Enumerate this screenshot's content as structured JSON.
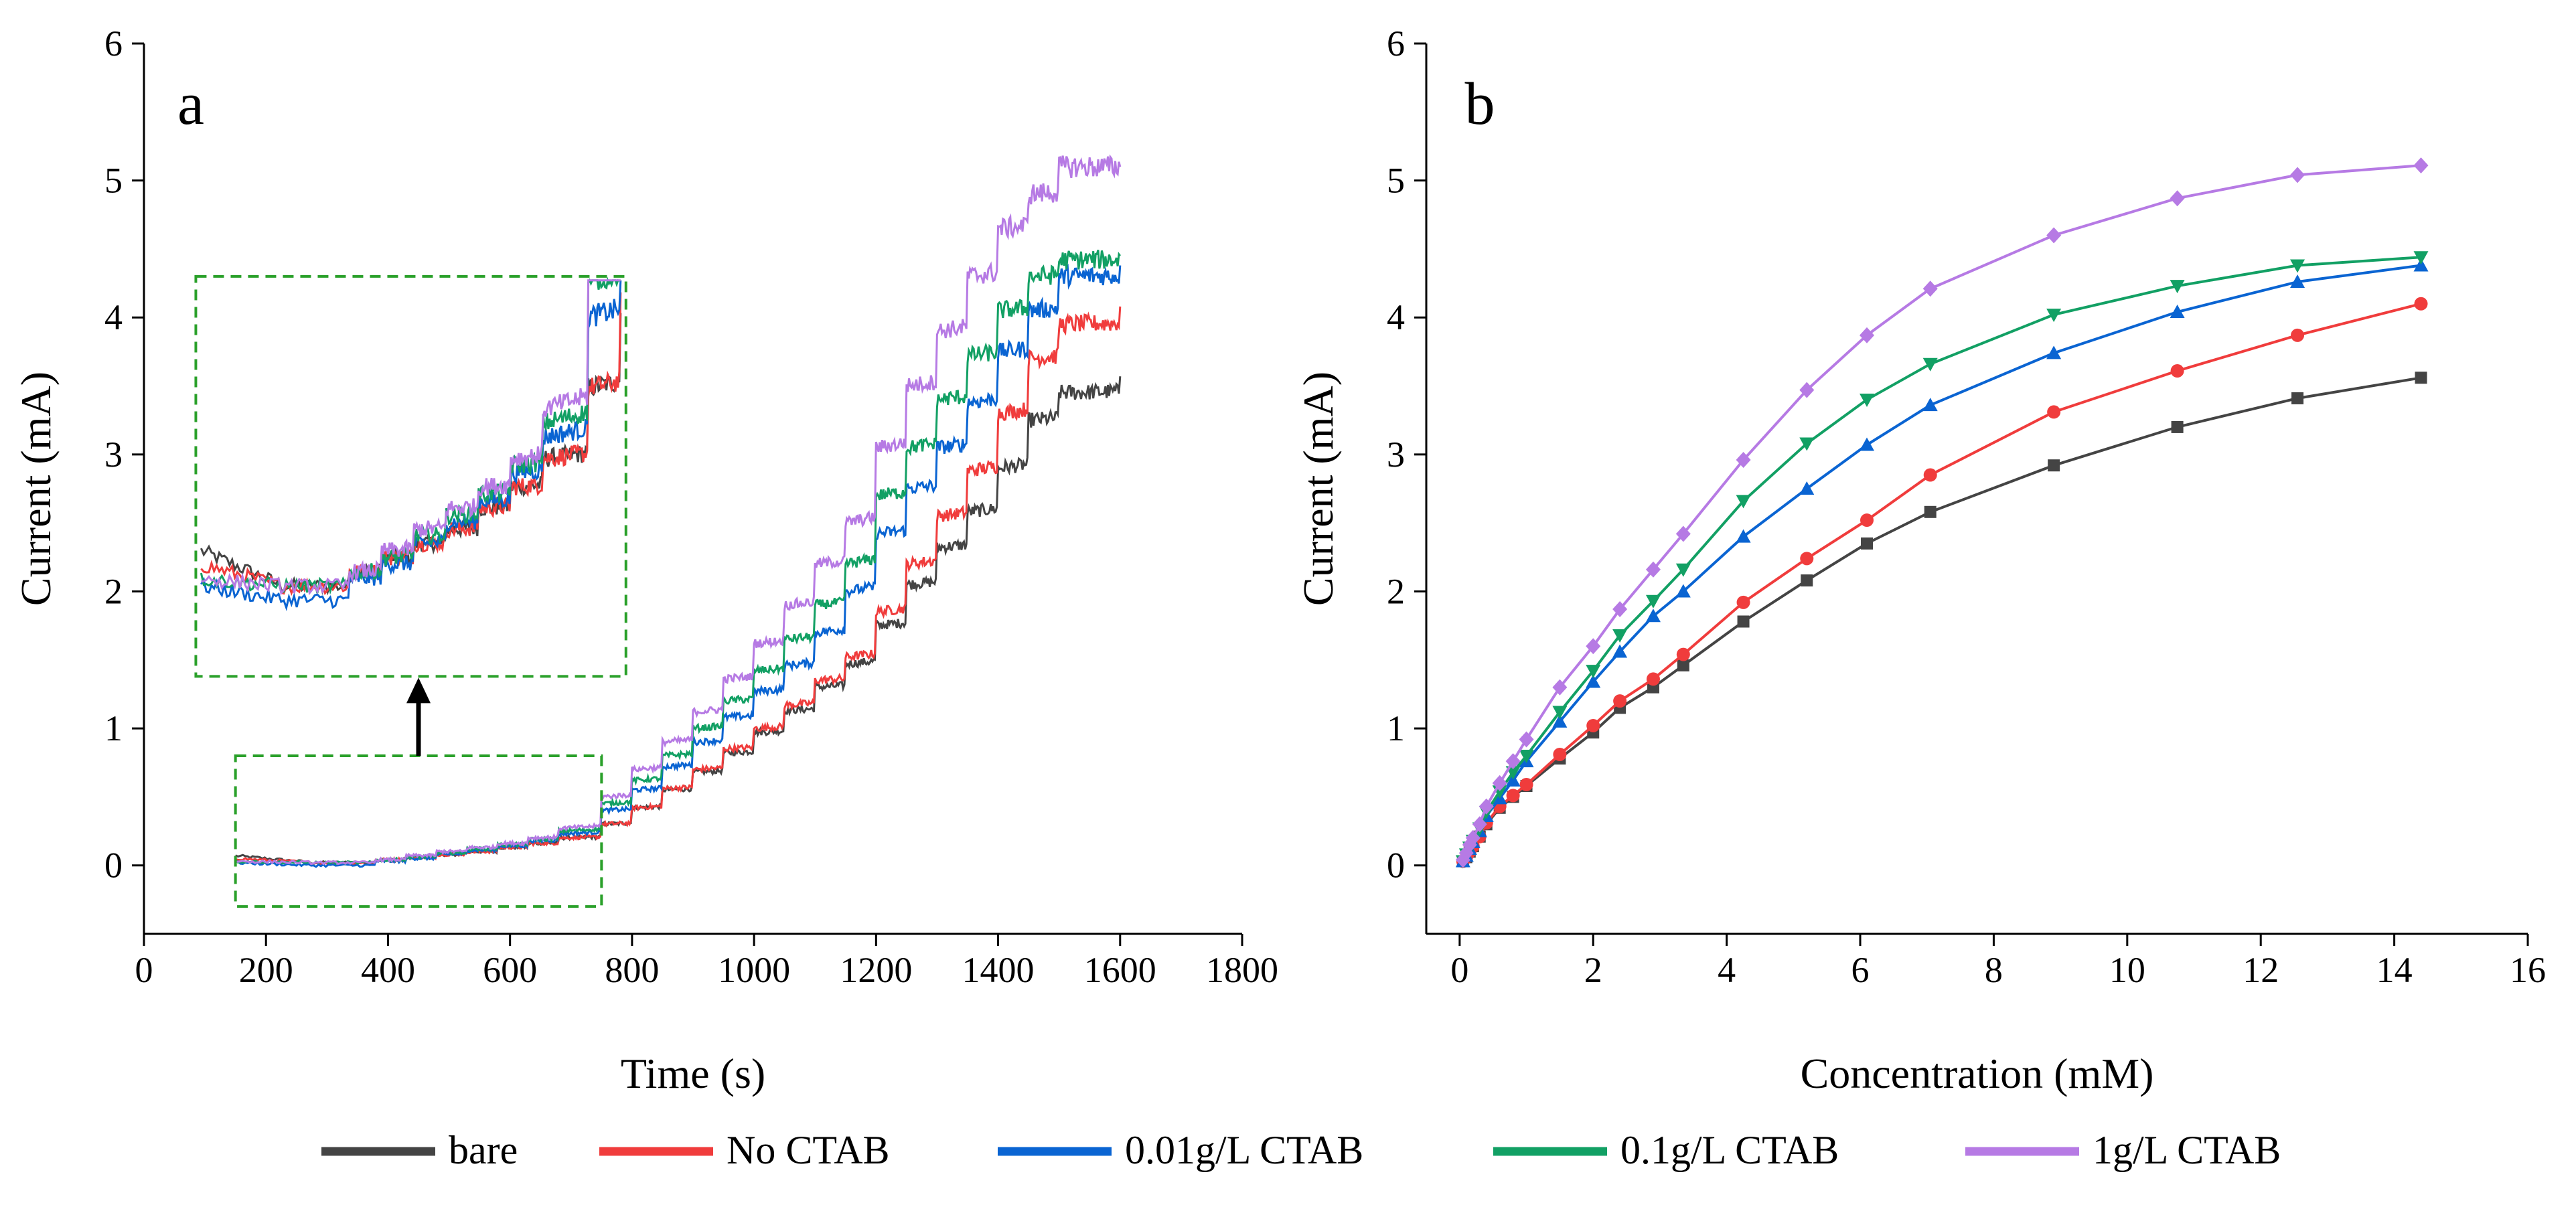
{
  "figure": {
    "legend": [
      {
        "name": "bare",
        "color": "#444444"
      },
      {
        "name": "No CTAB",
        "color": "#f03c3c"
      },
      {
        "name": "0.01g/L CTAB",
        "color": "#0a64d2"
      },
      {
        "name": "0.1g/L CTAB",
        "color": "#12a064"
      },
      {
        "name": "1g/L CTAB",
        "color": "#b67ae4"
      }
    ]
  },
  "chart_data": [
    {
      "panel": "a",
      "type": "line",
      "xlabel": "Time (s)",
      "ylabel": "Current (mA)",
      "xlim": [
        0,
        1800
      ],
      "ylim": [
        -0.5,
        6
      ],
      "xticks": [
        "0",
        "200",
        "400",
        "600",
        "800",
        "1000",
        "1200",
        "1400",
        "1600",
        "1800"
      ],
      "yticks": [
        "0",
        "1",
        "2",
        "3",
        "4",
        "5",
        "6"
      ],
      "description": "Amperometric step response; each series is a staircase with injections roughly every 50 s from 380 s to 1600 s",
      "x_start": 150,
      "x_end": 1600,
      "step_times": [
        380,
        430,
        480,
        530,
        580,
        630,
        680,
        750,
        800,
        850,
        900,
        950,
        1000,
        1050,
        1100,
        1150,
        1200,
        1250,
        1300,
        1350,
        1400,
        1450,
        1500
      ],
      "series": [
        {
          "name": "bare",
          "start": 0.07,
          "baseline": 0.02,
          "levels": [
            0.04,
            0.06,
            0.08,
            0.1,
            0.13,
            0.16,
            0.2,
            0.3,
            0.42,
            0.55,
            0.68,
            0.82,
            0.97,
            1.13,
            1.3,
            1.47,
            1.75,
            2.05,
            2.32,
            2.58,
            2.9,
            3.25,
            3.45,
            3.57
          ]
        },
        {
          "name": "No CTAB",
          "start": 0.05,
          "baseline": 0.02,
          "levels": [
            0.04,
            0.06,
            0.08,
            0.1,
            0.13,
            0.16,
            0.2,
            0.3,
            0.42,
            0.56,
            0.7,
            0.85,
            1.0,
            1.17,
            1.35,
            1.52,
            1.85,
            2.2,
            2.55,
            2.88,
            3.3,
            3.7,
            3.95,
            4.08
          ]
        },
        {
          "name": "0.01g/L CTAB",
          "start": 0.02,
          "baseline": 0.0,
          "levels": [
            0.03,
            0.05,
            0.08,
            0.11,
            0.14,
            0.18,
            0.23,
            0.4,
            0.55,
            0.72,
            0.9,
            1.08,
            1.27,
            1.46,
            1.7,
            2.0,
            2.42,
            2.75,
            3.05,
            3.38,
            3.75,
            4.05,
            4.3,
            4.38
          ]
        },
        {
          "name": "0.1g/L CTAB",
          "start": 0.03,
          "baseline": 0.02,
          "levels": [
            0.04,
            0.06,
            0.09,
            0.12,
            0.15,
            0.19,
            0.25,
            0.45,
            0.62,
            0.8,
            1.0,
            1.2,
            1.42,
            1.65,
            1.9,
            2.2,
            2.7,
            3.05,
            3.4,
            3.72,
            4.05,
            4.3,
            4.42,
            4.45
          ]
        },
        {
          "name": "1g/L CTAB",
          "start": 0.03,
          "baseline": 0.02,
          "levels": [
            0.04,
            0.07,
            0.1,
            0.13,
            0.16,
            0.2,
            0.27,
            0.5,
            0.7,
            0.9,
            1.12,
            1.36,
            1.62,
            1.9,
            2.2,
            2.5,
            3.05,
            3.5,
            3.9,
            4.3,
            4.65,
            4.9,
            5.1,
            5.1
          ]
        }
      ],
      "annotations": [
        {
          "type": "dashed-box",
          "x": [
            150,
            750
          ],
          "y": [
            -0.3,
            0.8
          ],
          "color": "#2aa02a"
        },
        {
          "type": "inset",
          "content": "magnified view of the 150–800 s region",
          "x": [
            85,
            790
          ],
          "y": [
            1.38,
            4.3
          ],
          "zoom_x": [
            150,
            800
          ],
          "zoom_y": [
            -0.1,
            0.45
          ]
        },
        {
          "type": "arrow",
          "direction": "up",
          "x": 450,
          "y": [
            0.8,
            1.38
          ]
        }
      ],
      "grid": false,
      "legend_position": "bottom"
    },
    {
      "panel": "b",
      "type": "line",
      "xlabel": "Concentration (mM)",
      "ylabel": "Current (mA)",
      "xlim": [
        -0.5,
        16
      ],
      "ylim": [
        -0.5,
        6
      ],
      "xticks": [
        "0",
        "2",
        "4",
        "6",
        "8",
        "10",
        "12",
        "14",
        "16"
      ],
      "yticks": [
        "0",
        "1",
        "2",
        "3",
        "4",
        "5",
        "6"
      ],
      "x": [
        0.05,
        0.1,
        0.15,
        0.2,
        0.3,
        0.4,
        0.6,
        0.8,
        1.0,
        1.5,
        2.0,
        2.4,
        2.9,
        3.35,
        4.25,
        5.2,
        6.1,
        7.05,
        8.9,
        10.75,
        12.55,
        14.4
      ],
      "series": [
        {
          "name": "bare",
          "marker": "square",
          "values": [
            0.03,
            0.06,
            0.1,
            0.14,
            0.21,
            0.3,
            0.42,
            0.5,
            0.58,
            0.78,
            0.97,
            1.15,
            1.3,
            1.46,
            1.78,
            2.08,
            2.35,
            2.58,
            2.92,
            3.2,
            3.41,
            3.56
          ]
        },
        {
          "name": "No CTAB",
          "marker": "circle",
          "values": [
            0.03,
            0.06,
            0.1,
            0.14,
            0.21,
            0.31,
            0.43,
            0.51,
            0.59,
            0.81,
            1.02,
            1.2,
            1.36,
            1.54,
            1.92,
            2.24,
            2.52,
            2.85,
            3.31,
            3.61,
            3.87,
            4.1
          ]
        },
        {
          "name": "0.01g/L CTAB",
          "marker": "triangle-up",
          "values": [
            0.03,
            0.07,
            0.12,
            0.17,
            0.25,
            0.36,
            0.49,
            0.62,
            0.76,
            1.05,
            1.34,
            1.56,
            1.82,
            2.0,
            2.4,
            2.75,
            3.07,
            3.36,
            3.74,
            4.04,
            4.26,
            4.38
          ]
        },
        {
          "name": "0.1g/L CTAB",
          "marker": "triangle-down",
          "values": [
            0.03,
            0.08,
            0.13,
            0.18,
            0.27,
            0.39,
            0.54,
            0.68,
            0.8,
            1.12,
            1.42,
            1.68,
            1.93,
            2.16,
            2.66,
            3.08,
            3.4,
            3.66,
            4.02,
            4.23,
            4.38,
            4.44
          ]
        },
        {
          "name": "1g/L CTAB",
          "marker": "diamond",
          "values": [
            0.04,
            0.09,
            0.15,
            0.2,
            0.3,
            0.43,
            0.6,
            0.76,
            0.92,
            1.3,
            1.6,
            1.87,
            2.16,
            2.42,
            2.96,
            3.47,
            3.87,
            4.21,
            4.6,
            4.87,
            5.04,
            5.11
          ]
        }
      ],
      "grid": false,
      "legend_position": "bottom"
    }
  ]
}
